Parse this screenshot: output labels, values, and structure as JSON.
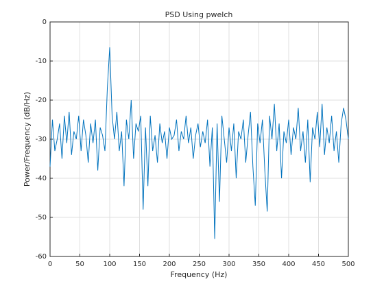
{
  "chart_data": {
    "type": "line",
    "title": "PSD Using pwelch",
    "x_label": "Frequency (Hz)",
    "y_label": "Power/Frequency (dB/Hz)",
    "x": [
      0,
      4,
      8,
      12,
      16,
      20,
      24,
      28,
      32,
      36,
      40,
      44,
      48,
      52,
      56,
      60,
      64,
      68,
      72,
      76,
      80,
      84,
      88,
      92,
      96,
      100,
      104,
      108,
      112,
      116,
      120,
      124,
      128,
      132,
      136,
      140,
      144,
      148,
      152,
      156,
      160,
      164,
      168,
      172,
      176,
      180,
      184,
      188,
      192,
      196,
      200,
      204,
      208,
      212,
      216,
      220,
      224,
      228,
      232,
      236,
      240,
      244,
      248,
      252,
      256,
      260,
      264,
      268,
      272,
      276,
      280,
      284,
      288,
      292,
      296,
      300,
      304,
      308,
      312,
      316,
      320,
      324,
      328,
      332,
      336,
      340,
      344,
      348,
      352,
      356,
      360,
      364,
      368,
      372,
      376,
      380,
      384,
      388,
      392,
      396,
      400,
      404,
      408,
      412,
      416,
      420,
      424,
      428,
      432,
      436,
      440,
      444,
      448,
      452,
      456,
      460,
      464,
      468,
      472,
      476,
      480,
      484,
      488,
      492,
      496,
      500
    ],
    "series": [
      {
        "name": "PSD",
        "color": "#0072bd",
        "values": [
          -37,
          -25,
          -33,
          -30,
          -26,
          -35,
          -24,
          -31,
          -23,
          -34,
          -28,
          -30,
          -24,
          -33,
          -25,
          -29,
          -36,
          -26,
          -31,
          -25,
          -38,
          -27,
          -29,
          -33,
          -17,
          -6.5,
          -24,
          -30,
          -23,
          -33,
          -28,
          -42,
          -25,
          -30,
          -20,
          -35,
          -26,
          -28,
          -24,
          -48,
          -27,
          -42,
          -24,
          -33,
          -29,
          -36,
          -26,
          -31,
          -28,
          -35,
          -27,
          -30,
          -29,
          -25,
          -33,
          -28,
          -30,
          -24,
          -31,
          -27,
          -35,
          -29,
          -26,
          -32,
          -28,
          -31,
          -25,
          -37,
          -27,
          -55.5,
          -26,
          -46,
          -24,
          -30,
          -36,
          -27,
          -33,
          -26,
          -40,
          -28,
          -30,
          -25,
          -36,
          -29,
          -23,
          -37,
          -47,
          -26,
          -31,
          -25,
          -38,
          -48.5,
          -24,
          -30,
          -21,
          -33,
          -26,
          -40,
          -28,
          -31,
          -25,
          -34,
          -27,
          -30,
          -22,
          -33,
          -28,
          -36,
          -25,
          -41,
          -27,
          -30,
          -23,
          -32,
          -21,
          -34,
          -27,
          -31,
          -24,
          -33,
          -28,
          -36,
          -26,
          -22,
          -25,
          -30
        ]
      }
    ],
    "xlim": [
      0,
      500
    ],
    "xticks": [
      0,
      50,
      100,
      150,
      200,
      250,
      300,
      350,
      400,
      450,
      500
    ],
    "ylim": [
      -60,
      0
    ],
    "yticks": [
      -60,
      -50,
      -40,
      -30,
      -20,
      -10,
      0
    ],
    "grid": true
  }
}
